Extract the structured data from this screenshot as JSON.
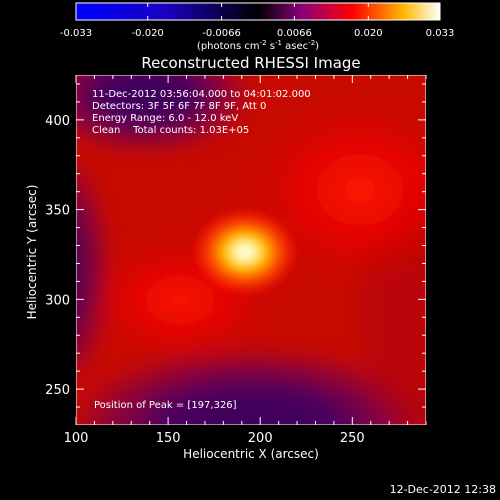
{
  "chart_data": {
    "type": "heatmap",
    "title": "Reconstructed RHESSI Image",
    "xlabel": "Heliocentric X (arcsec)",
    "ylabel": "Heliocentric Y (arcsec)",
    "xlim": [
      100,
      290
    ],
    "ylim": [
      230,
      425
    ],
    "xticks": [
      100,
      150,
      200,
      250
    ],
    "yticks": [
      250,
      300,
      350,
      400
    ],
    "colorbar": {
      "min": -0.033,
      "max": 0.033,
      "ticks": [
        "-0.033",
        "-0.020",
        "-0.0066",
        "0.0066",
        "0.020",
        "0.033"
      ],
      "unit_label": "(photons cm",
      "unit_exp1": "-2",
      "unit_mid": " s",
      "unit_exp2": "-1",
      "unit_mid2": " asec",
      "unit_exp3": "-2",
      "unit_end": ")"
    },
    "annotations": {
      "time_range": "11-Dec-2012 03:56:04.000 to 04:01:02.000",
      "detectors": "Detectors: 3F 5F 6F 7F 8F 9F, Att 0",
      "energy_range": "Energy Range: 6.0 - 12.0 keV",
      "clean": "Clean    Total counts: 1.03E+05",
      "peak": "Position of Peak = [197,326]"
    },
    "peak": [
      197,
      326
    ],
    "colors": {
      "negative_min": "#0000ff",
      "zero": "#000000",
      "positive_mid": "#ff0000",
      "positive_max": "#ffffff"
    }
  },
  "footer": {
    "timestamp": "12-Dec-2012 12:38"
  }
}
